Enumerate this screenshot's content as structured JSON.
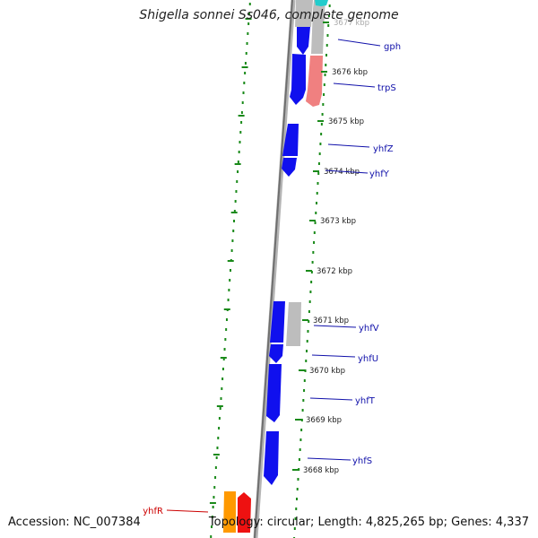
{
  "title": "Shigella sonnei Ss046, complete genome",
  "ticks": [
    "3677 kbp",
    "3676 kbp",
    "3675 kbp",
    "3674 kbp",
    "3673 kbp",
    "3672 kbp",
    "3671 kbp",
    "3670 kbp",
    "3669 kbp",
    "3668 kbp"
  ],
  "genes": [
    "gph",
    "trpS",
    "yhfZ",
    "yhfY",
    "yhfV",
    "yhfU",
    "yhfT",
    "yhfS",
    "yhfR"
  ],
  "footer": {
    "accession": "Accession: NC_007384",
    "topology": "Topology: circular; Length: 4,825,265 bp; Genes: 4,337"
  },
  "colors": {
    "cds_blue": "#1010ee",
    "gray": "#bdbdbd",
    "salmon": "#f08080",
    "cyan": "#22cccc",
    "orange": "#ff9900",
    "red": "#ee1111",
    "label_blue": "#1010aa",
    "label_red": "#cc0000",
    "tick_green": "#1a8a1a",
    "backbone": "#8a8a8a"
  }
}
